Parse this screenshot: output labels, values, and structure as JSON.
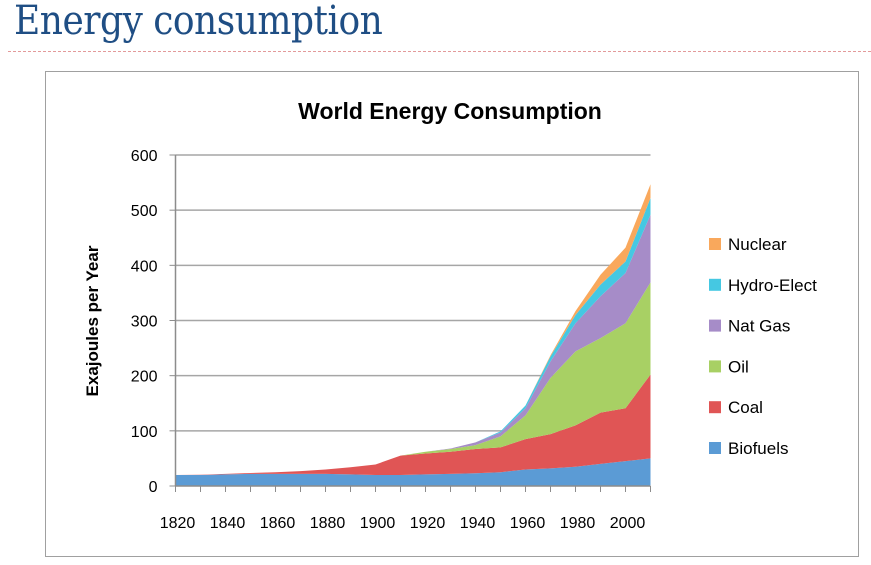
{
  "slide": {
    "title": "Energy consumption"
  },
  "chart_data": {
    "type": "area",
    "stacked": true,
    "title": "World Energy Consumption",
    "xlabel": "",
    "ylabel": "Exajoules per Year",
    "ylim": [
      0,
      600
    ],
    "yticks": [
      0,
      100,
      200,
      300,
      400,
      500,
      600
    ],
    "xticks": [
      1820,
      1840,
      1860,
      1880,
      1900,
      1920,
      1940,
      1960,
      1980,
      2000
    ],
    "grid": true,
    "legend_position": "right",
    "x": [
      1820,
      1830,
      1840,
      1850,
      1860,
      1870,
      1880,
      1890,
      1900,
      1910,
      1920,
      1930,
      1940,
      1950,
      1960,
      1970,
      1980,
      1990,
      2000,
      2010
    ],
    "series": [
      {
        "name": "Biofuels",
        "color": "#5b9bd5",
        "values": [
          20,
          20,
          21,
          22,
          22,
          22,
          22,
          21,
          20,
          20,
          21,
          22,
          23,
          25,
          30,
          32,
          35,
          40,
          45,
          50
        ]
      },
      {
        "name": "Coal",
        "color": "#e05555",
        "values": [
          0,
          0.5,
          1,
          1.5,
          3,
          5,
          8,
          13,
          19,
          35,
          38,
          40,
          44,
          45,
          55,
          62,
          75,
          93,
          96,
          152
        ]
      },
      {
        "name": "Oil",
        "color": "#a8d064",
        "values": [
          0,
          0,
          0,
          0,
          0,
          0,
          0,
          0,
          0,
          0,
          3,
          5,
          7,
          20,
          43,
          102,
          134,
          135,
          154,
          167
        ]
      },
      {
        "name": "Nat Gas",
        "color": "#a68cc8",
        "values": [
          0,
          0,
          0,
          0,
          0,
          0,
          0,
          0,
          0,
          0,
          0,
          1,
          5,
          7,
          13,
          30,
          51,
          76,
          91,
          123
        ]
      },
      {
        "name": "Hydro-Elect",
        "color": "#45c8e2",
        "values": [
          0,
          0,
          0,
          0,
          0,
          0,
          0,
          0,
          0,
          0,
          0,
          0,
          0,
          2,
          5,
          9,
          15,
          21,
          21,
          30
        ]
      },
      {
        "name": "Nuclear",
        "color": "#f9a85c",
        "values": [
          0,
          0,
          0,
          0,
          0,
          0,
          0,
          0,
          0,
          0,
          0,
          0,
          0,
          0,
          0,
          2,
          7,
          18,
          25,
          25
        ]
      }
    ]
  }
}
